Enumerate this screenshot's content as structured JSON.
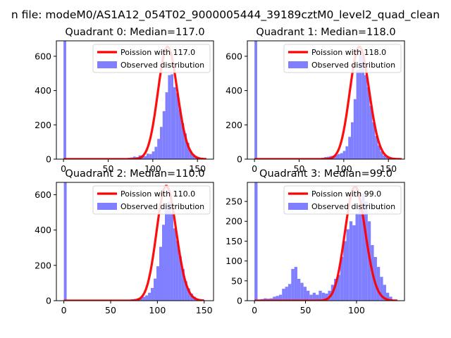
{
  "figure": {
    "suptitle": "n file: modeM0/AS1A12_054T02_9000005444_39189cztM0_level2_quad_clean"
  },
  "chart_data": [
    {
      "type": "bar",
      "title": "Quadrant 0: Median=117.0",
      "xlim": [
        -8,
        168
      ],
      "ylim": [
        0,
        690
      ],
      "xticks": [
        0,
        50,
        100,
        150
      ],
      "yticks": [
        0,
        200,
        400,
        600
      ],
      "bin_width": 3,
      "spike": {
        "x": 0,
        "value": 690
      },
      "histogram": {
        "name": "Observed distribution",
        "color": "#7f7fff",
        "x": [
          66,
          69,
          72,
          75,
          78,
          81,
          84,
          87,
          90,
          93,
          96,
          99,
          102,
          105,
          108,
          111,
          114,
          117,
          120,
          123,
          126,
          129,
          132,
          135,
          138,
          141,
          144,
          147,
          150,
          153
        ],
        "values": [
          2,
          3,
          8,
          10,
          15,
          12,
          22,
          22,
          18,
          32,
          30,
          45,
          72,
          118,
          188,
          280,
          390,
          490,
          495,
          420,
          385,
          290,
          210,
          150,
          95,
          50,
          28,
          18,
          8,
          3
        ]
      },
      "poisson": {
        "name": "Poission with 117.0",
        "mu": 117.0,
        "scale": 655,
        "x_range": [
          0,
          160
        ],
        "color": "#ff0000"
      },
      "legend": [
        "Poission with 117.0",
        "Observed distribution"
      ],
      "legend_position": "upper right"
    },
    {
      "type": "bar",
      "title": "Quadrant 1: Median=118.0",
      "xlim": [
        -8,
        168
      ],
      "ylim": [
        0,
        690
      ],
      "xticks": [
        0,
        50,
        100,
        150
      ],
      "yticks": [
        0,
        200,
        400,
        600
      ],
      "bin_width": 3,
      "spike": {
        "x": 0,
        "value": 690
      },
      "histogram": {
        "name": "Observed distribution",
        "color": "#7f7fff",
        "x": [
          66,
          69,
          72,
          75,
          78,
          81,
          84,
          87,
          90,
          93,
          96,
          99,
          102,
          105,
          108,
          111,
          114,
          117,
          120,
          123,
          126,
          129,
          132,
          135,
          138,
          141,
          144,
          147,
          150,
          153
        ],
        "values": [
          2,
          3,
          6,
          8,
          12,
          14,
          18,
          20,
          24,
          30,
          35,
          48,
          75,
          130,
          215,
          350,
          520,
          610,
          600,
          490,
          420,
          310,
          215,
          135,
          80,
          45,
          22,
          12,
          5,
          2
        ]
      },
      "poisson": {
        "name": "Poission with 118.0",
        "mu": 118.0,
        "scale": 655,
        "x_range": [
          0,
          165
        ],
        "color": "#ff0000"
      },
      "legend": [
        "Poission with 118.0",
        "Observed distribution"
      ],
      "legend_position": "upper right"
    },
    {
      "type": "bar",
      "title": "Quadrant 2: Median=110.0",
      "xlim": [
        -8,
        160
      ],
      "ylim": [
        0,
        670
      ],
      "xticks": [
        0,
        50,
        100,
        150
      ],
      "yticks": [
        0,
        200,
        400,
        600
      ],
      "bin_width": 3,
      "spike": {
        "x": 0,
        "value": 670
      },
      "histogram": {
        "name": "Observed distribution",
        "color": "#7f7fff",
        "x": [
          60,
          63,
          66,
          69,
          72,
          75,
          78,
          81,
          84,
          87,
          90,
          93,
          96,
          99,
          102,
          105,
          108,
          111,
          114,
          117,
          120,
          123,
          126,
          129,
          132,
          135,
          138,
          141,
          144
        ],
        "values": [
          2,
          3,
          5,
          6,
          8,
          10,
          14,
          16,
          22,
          30,
          45,
          72,
          125,
          195,
          305,
          430,
          520,
          560,
          500,
          410,
          340,
          250,
          180,
          110,
          70,
          40,
          22,
          10,
          4
        ]
      },
      "poisson": {
        "name": "Poission with 110.0",
        "mu": 110.0,
        "scale": 650,
        "x_range": [
          0,
          150
        ],
        "color": "#ff0000"
      },
      "legend": [
        "Poission with 110.0",
        "Observed distribution"
      ],
      "legend_position": "upper right"
    },
    {
      "type": "bar",
      "title": "Quadrant 3: Median=99.0",
      "xlim": [
        -7,
        147
      ],
      "ylim": [
        0,
        298
      ],
      "xticks": [
        0,
        50,
        100
      ],
      "yticks": [
        0,
        50,
        100,
        150,
        200,
        250
      ],
      "bin_width": 3,
      "spike": {
        "x": 0,
        "value": 298
      },
      "histogram": {
        "name": "Observed distribution",
        "color": "#7f7fff",
        "x": [
          3,
          6,
          9,
          12,
          15,
          18,
          21,
          24,
          27,
          30,
          33,
          36,
          39,
          42,
          45,
          48,
          51,
          54,
          57,
          60,
          63,
          66,
          69,
          72,
          75,
          78,
          81,
          84,
          87,
          90,
          93,
          96,
          99,
          102,
          105,
          108,
          111,
          114,
          117,
          120,
          123,
          126,
          129,
          132
        ],
        "values": [
          3,
          4,
          6,
          5,
          6,
          10,
          12,
          15,
          30,
          35,
          42,
          80,
          85,
          55,
          45,
          35,
          25,
          15,
          20,
          15,
          25,
          20,
          18,
          25,
          40,
          55,
          65,
          110,
          150,
          180,
          200,
          190,
          220,
          240,
          270,
          250,
          200,
          140,
          110,
          85,
          60,
          40,
          20,
          10
        ]
      },
      "poisson": {
        "name": "Poission with 99.0",
        "mu": 99.0,
        "scale": 287,
        "x_range": [
          0,
          140
        ],
        "color": "#ff0000"
      },
      "legend": [
        "Poission with 99.0",
        "Observed distribution"
      ],
      "legend_position": "upper right"
    }
  ]
}
